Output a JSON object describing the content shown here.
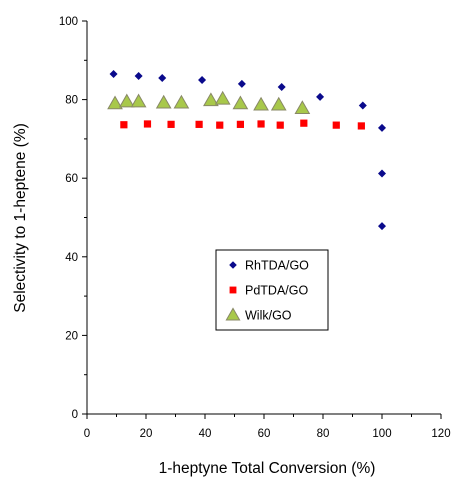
{
  "chart_data": {
    "type": "scatter",
    "title": "",
    "xlabel": "1-heptyne Total Conversion (%)",
    "ylabel": "Selectivity to 1-heptene (%)",
    "xlim": [
      0,
      120
    ],
    "ylim": [
      0,
      100
    ],
    "x_ticks": [
      0,
      20,
      40,
      60,
      80,
      100,
      120
    ],
    "y_ticks": [
      0,
      20,
      40,
      60,
      80,
      100
    ],
    "grid": false,
    "legend_position": "center",
    "series": [
      {
        "name": "RhTDA/GO",
        "marker": "diamond",
        "color": "#0a0a8c",
        "points": [
          [
            9,
            86.5
          ],
          [
            17.5,
            86
          ],
          [
            25.5,
            85.5
          ],
          [
            39,
            85
          ],
          [
            52.5,
            84
          ],
          [
            66,
            83.2
          ],
          [
            79,
            80.7
          ],
          [
            93.5,
            78.5
          ],
          [
            100,
            72.8
          ],
          [
            100,
            61.2
          ],
          [
            100,
            47.8
          ]
        ]
      },
      {
        "name": "PdTDA/GO",
        "marker": "square",
        "color": "#ff0000",
        "points": [
          [
            12.5,
            73.6
          ],
          [
            20.5,
            73.8
          ],
          [
            28.5,
            73.7
          ],
          [
            38,
            73.7
          ],
          [
            45,
            73.5
          ],
          [
            52,
            73.7
          ],
          [
            59,
            73.8
          ],
          [
            65.5,
            73.5
          ],
          [
            73.5,
            74
          ],
          [
            84.5,
            73.5
          ],
          [
            93,
            73.3
          ]
        ]
      },
      {
        "name": "Wilk/GO",
        "marker": "triangle",
        "color": "#a8c84a",
        "stroke": "#888866",
        "points": [
          [
            9.5,
            79
          ],
          [
            13.5,
            79.5
          ],
          [
            17.5,
            79.5
          ],
          [
            26,
            79.2
          ],
          [
            32,
            79.2
          ],
          [
            42,
            79.8
          ],
          [
            46,
            80.2
          ],
          [
            52,
            79
          ],
          [
            59,
            78.7
          ],
          [
            65,
            78.7
          ],
          [
            73,
            77.8
          ]
        ]
      }
    ]
  }
}
